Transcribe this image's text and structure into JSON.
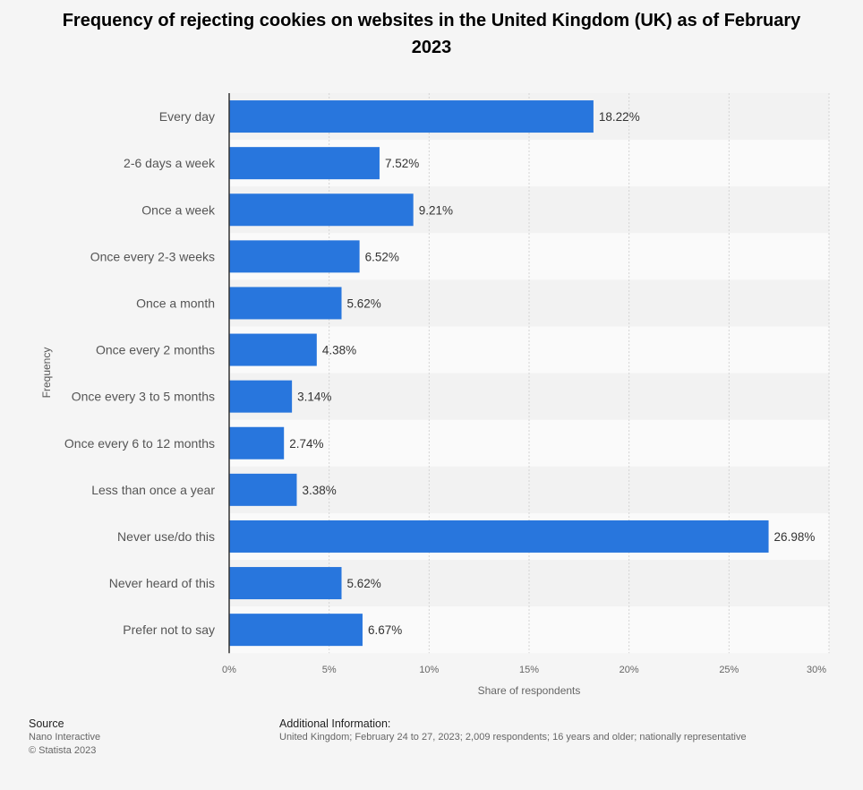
{
  "chart_data": {
    "type": "bar",
    "orientation": "horizontal",
    "title": "Frequency of rejecting cookies on websites in the United Kingdom (UK) as of February 2023",
    "xlabel": "Share of respondents",
    "ylabel": "Frequency",
    "xlim": [
      0,
      30
    ],
    "x_ticks": [
      "0%",
      "5%",
      "10%",
      "15%",
      "20%",
      "25%",
      "30%"
    ],
    "categories": [
      "Every day",
      "2-6 days a week",
      "Once a week",
      "Once every 2-3 weeks",
      "Once a month",
      "Once every 2 months",
      "Once every 3 to 5 months",
      "Once every 6 to 12 months",
      "Less than once a year",
      "Never use/do this",
      "Never heard of this",
      "Prefer not to say"
    ],
    "values": [
      18.22,
      7.52,
      9.21,
      6.52,
      5.62,
      4.38,
      3.14,
      2.74,
      3.38,
      26.98,
      5.62,
      6.67
    ],
    "data_labels": [
      "18.22%",
      "7.52%",
      "9.21%",
      "6.52%",
      "5.62%",
      "4.38%",
      "3.14%",
      "2.74%",
      "3.38%",
      "26.98%",
      "5.62%",
      "6.67%"
    ],
    "grid": "vertical-dashed",
    "legend": "none",
    "bar_color": "#2876dd"
  },
  "footer": {
    "source_heading": "Source",
    "source_lines": [
      "Nano Interactive",
      "© Statista 2023"
    ],
    "info_heading": "Additional Information:",
    "info_text": "United Kingdom; February 24 to 27, 2023; 2,009 respondents; 16 years and older; nationally representative"
  }
}
